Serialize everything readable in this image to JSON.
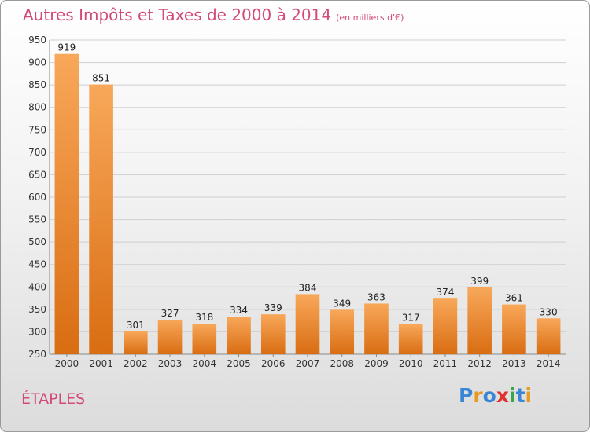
{
  "title": "Autres Impôts et Taxes de 2000 à 2014",
  "unit_label": "(en milliers d'€)",
  "city": "ÉTAPLES",
  "logo": {
    "letters": [
      "P",
      "r",
      "o",
      "x",
      "i",
      "t",
      "i"
    ],
    "colors": [
      "#3a86d4",
      "#e89a1f",
      "#3a86d4",
      "#e03030",
      "#3aa64a",
      "#3a86d4",
      "#e89a1f"
    ]
  },
  "chart_data": {
    "type": "bar",
    "categories": [
      "2000",
      "2001",
      "2002",
      "2003",
      "2004",
      "2005",
      "2006",
      "2007",
      "2008",
      "2009",
      "2010",
      "2011",
      "2012",
      "2013",
      "2014"
    ],
    "values": [
      919,
      851,
      301,
      327,
      318,
      334,
      339,
      384,
      349,
      363,
      317,
      374,
      399,
      361,
      330
    ],
    "ylim": [
      250,
      950
    ],
    "yticks": [
      250,
      300,
      350,
      400,
      450,
      500,
      550,
      600,
      650,
      700,
      750,
      800,
      850,
      900,
      950
    ],
    "grid": true,
    "bar_color": "#f0912f"
  }
}
